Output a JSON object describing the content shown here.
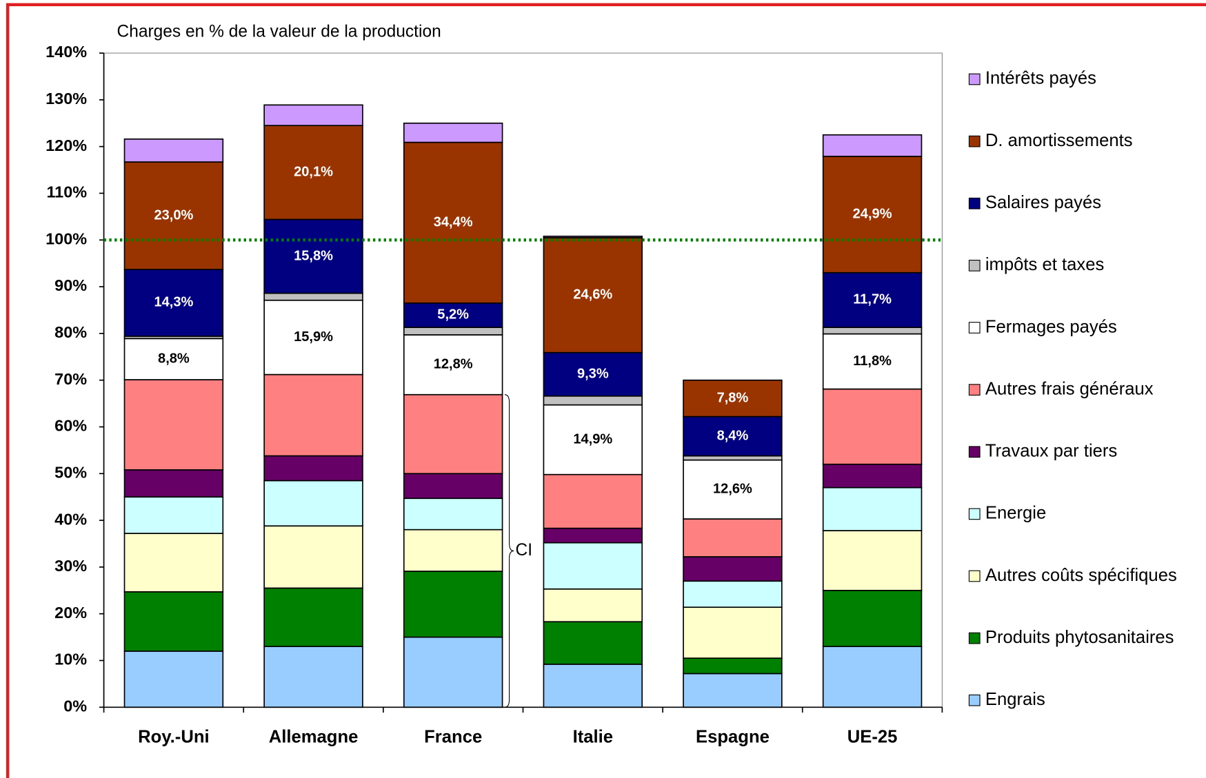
{
  "chart_data": {
    "type": "stacked-bar",
    "title": "Charges en % de la valeur de la production",
    "categories": [
      "Roy.-Uni",
      "Allemagne",
      "France",
      "Italie",
      "Espagne",
      "UE-25"
    ],
    "series": [
      {
        "name": "Engrais",
        "color": "#99ccff",
        "values": [
          12.0,
          13.0,
          15.0,
          9.2,
          7.2,
          13.0
        ]
      },
      {
        "name": "Produits phytosanitaires",
        "color": "#008000",
        "values": [
          12.7,
          12.5,
          14.1,
          9.1,
          3.3,
          12.0
        ]
      },
      {
        "name": "Autres coûts spécifiques",
        "color": "#ffffcc",
        "values": [
          12.5,
          13.3,
          8.9,
          7.0,
          10.9,
          12.8
        ]
      },
      {
        "name": "Energie",
        "color": "#ccffff",
        "values": [
          7.8,
          9.7,
          6.7,
          9.9,
          5.6,
          9.2
        ]
      },
      {
        "name": "Travaux par tiers",
        "color": "#660066",
        "values": [
          5.8,
          5.3,
          5.3,
          3.1,
          5.2,
          5.0
        ]
      },
      {
        "name": "Autres frais généraux",
        "color": "#ff8080",
        "values": [
          19.3,
          17.4,
          16.9,
          11.5,
          8.1,
          16.1
        ]
      },
      {
        "name": "Fermages payés",
        "color": "#ffffff",
        "values": [
          8.8,
          15.9,
          12.8,
          14.9,
          12.6,
          11.8
        ],
        "value_labels": [
          "8,8%",
          "15,9%",
          "12,8%",
          "14,9%",
          "12,6%",
          "11,8%"
        ]
      },
      {
        "name": "impôts et taxes",
        "color": "#c0c0c0",
        "values": [
          0.5,
          1.5,
          1.6,
          1.9,
          0.9,
          1.4
        ]
      },
      {
        "name": "Salaires payés",
        "color": "#000080",
        "values": [
          14.3,
          15.8,
          5.2,
          9.3,
          8.4,
          11.7
        ],
        "value_labels": [
          "14,3%",
          "15,8%",
          "5,2%",
          "9,3%",
          "8,4%",
          "11,7%"
        ]
      },
      {
        "name": "D. amortissements",
        "color": "#993300",
        "values": [
          23.0,
          20.1,
          34.4,
          24.6,
          7.8,
          24.9
        ],
        "value_labels": [
          "23,0%",
          "20,1%",
          "34,4%",
          "24,6%",
          "7,8%",
          "24,9%"
        ]
      },
      {
        "name": "Intérêts payés",
        "color": "#cc99ff",
        "values": [
          4.9,
          4.4,
          4.1,
          0.3,
          0,
          4.6
        ]
      }
    ],
    "ylim": [
      0,
      140
    ],
    "yticks": [
      {
        "value": 0,
        "label": "0%"
      },
      {
        "value": 10,
        "label": "10%"
      },
      {
        "value": 20,
        "label": "20%"
      },
      {
        "value": 30,
        "label": "30%"
      },
      {
        "value": 40,
        "label": "40%"
      },
      {
        "value": 50,
        "label": "50%"
      },
      {
        "value": 60,
        "label": "60%"
      },
      {
        "value": 70,
        "label": "70%"
      },
      {
        "value": 80,
        "label": "80%"
      },
      {
        "value": 90,
        "label": "90%"
      },
      {
        "value": 100,
        "label": "100%"
      },
      {
        "value": 110,
        "label": "110%"
      },
      {
        "value": 120,
        "label": "120%"
      },
      {
        "value": 130,
        "label": "130%"
      },
      {
        "value": 140,
        "label": "140%"
      }
    ],
    "reference_line": 100,
    "reference_line_color": "#008000",
    "annotation": "CI",
    "legend": "right",
    "grid": false
  }
}
